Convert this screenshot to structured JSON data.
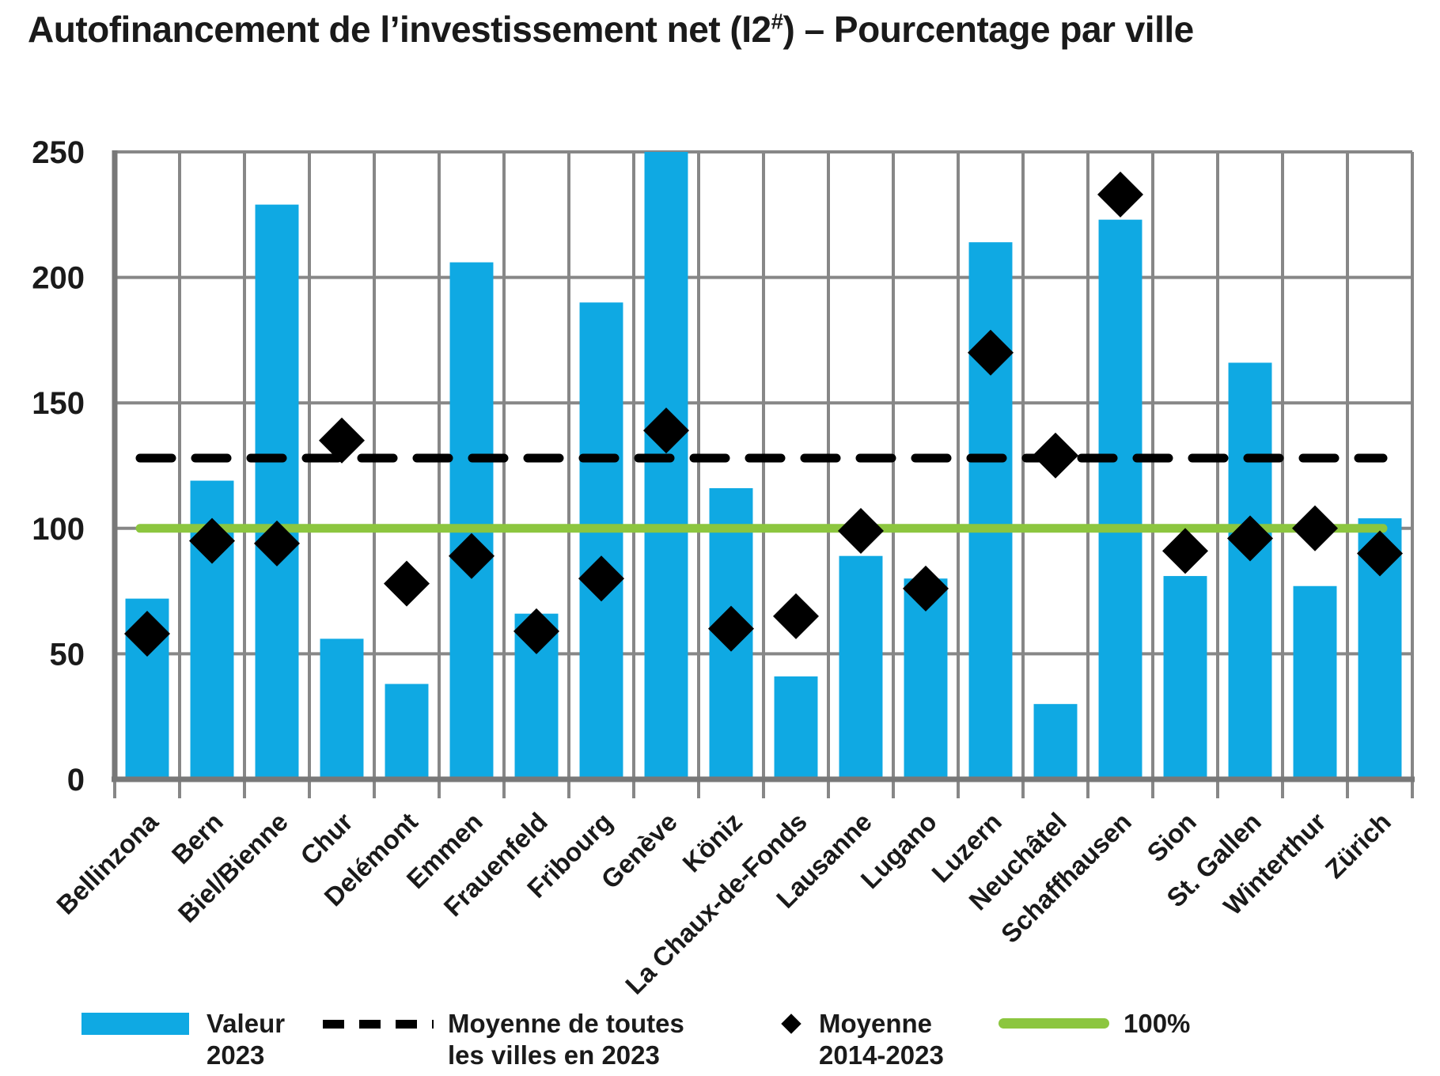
{
  "title": {
    "prefix": "Autofinancement de l’investissement net (I2",
    "sup": "#",
    "suffix": ") – Pourcentage par ville"
  },
  "legend": [
    {
      "label": "Valeur\n2023",
      "swatch": "bar"
    },
    {
      "label": "Moyenne de toutes\nles villes en 2023",
      "swatch": "dashed"
    },
    {
      "label": "Moyenne\n2014-2023",
      "swatch": "diamond"
    },
    {
      "label": "100%",
      "swatch": "green"
    }
  ],
  "chart_data": {
    "type": "bar",
    "title": "Autofinancement de l’investissement net (I2#) – Pourcentage par ville",
    "xlabel": "",
    "ylabel": "",
    "ylim": [
      0,
      250
    ],
    "yticks": [
      0,
      50,
      100,
      150,
      200,
      250
    ],
    "grid": true,
    "legend_position": "bottom",
    "categories": [
      "Bellinzona",
      "Bern",
      "Biel/Bienne",
      "Chur",
      "Delémont",
      "Emmen",
      "Frauenfeld",
      "Fribourg",
      "Genève",
      "Köniz",
      "La Chaux-de-Fonds",
      "Lausanne",
      "Lugano",
      "Luzern",
      "Neuchâtel",
      "Schaffhausen",
      "Sion",
      "St. Gallen",
      "Winterthur",
      "Zürich"
    ],
    "series": [
      {
        "name": "Valeur 2023",
        "type": "bar",
        "values": [
          72,
          119,
          229,
          56,
          38,
          206,
          66,
          190,
          250,
          116,
          41,
          89,
          80,
          214,
          30,
          223,
          81,
          166,
          77,
          104
        ]
      },
      {
        "name": "Moyenne 2014-2023",
        "type": "diamond",
        "values": [
          58,
          95,
          94,
          135,
          78,
          89,
          59,
          80,
          139,
          60,
          65,
          99,
          76,
          170,
          129,
          233,
          91,
          96,
          100,
          90
        ]
      }
    ],
    "reference_lines": [
      {
        "name": "Moyenne de toutes les villes en 2023",
        "value": 128,
        "style": "dashed-black"
      },
      {
        "name": "100%",
        "value": 100,
        "style": "solid-green"
      }
    ],
    "colors": {
      "bar": "#0FA9E3",
      "green": "#8CC63F",
      "diamond": "#000000",
      "dashed": "#000000",
      "grid": "#878787",
      "axis": "#787878",
      "text": "#1a1a1a"
    }
  }
}
